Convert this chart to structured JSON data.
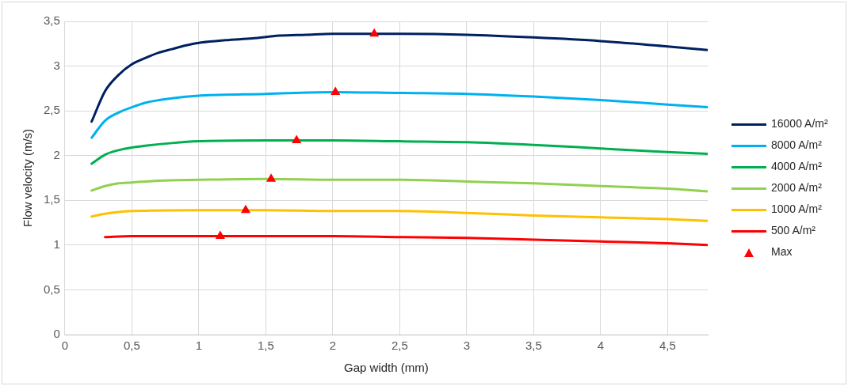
{
  "chart_data": {
    "type": "line",
    "xlabel": "Gap width (mm)",
    "ylabel": "Flow velocity (m/s)",
    "xlim": [
      0,
      4.8
    ],
    "xticks": [
      0,
      {
        "value": 0.5,
        "label": "0,5"
      },
      1,
      {
        "value": 1.5,
        "label": "1,5"
      },
      2,
      {
        "value": 2.5,
        "label": "2,5"
      },
      3,
      {
        "value": 3.5,
        "label": "3,5"
      },
      4,
      {
        "value": 4.5,
        "label": "4,5"
      }
    ],
    "ylim": [
      0,
      3.5
    ],
    "yticks": [
      0,
      {
        "value": 0.5,
        "label": "0,5"
      },
      1,
      {
        "value": 1.5,
        "label": "1,5"
      },
      2,
      {
        "value": 2.5,
        "label": "2,5"
      },
      3,
      {
        "value": 3.5,
        "label": "3,5"
      }
    ],
    "grid": true,
    "legend": "right",
    "line_style": "solid",
    "series": [
      {
        "name": "16000 A/m²",
        "color": "#002060",
        "type": "line",
        "marker": "none",
        "x": [
          0.2,
          0.3,
          0.4,
          0.5,
          0.6,
          0.7,
          0.8,
          0.9,
          1.0,
          1.2,
          1.4,
          1.6,
          1.8,
          2.0,
          2.3,
          2.5,
          3.0,
          3.5,
          4.0,
          4.5,
          4.8
        ],
        "values": [
          2.38,
          2.72,
          2.9,
          3.02,
          3.09,
          3.15,
          3.19,
          3.23,
          3.26,
          3.29,
          3.31,
          3.34,
          3.35,
          3.36,
          3.36,
          3.36,
          3.35,
          3.32,
          3.28,
          3.22,
          3.18
        ]
      },
      {
        "name": "8000 A/m²",
        "color": "#00b0f0",
        "type": "line",
        "marker": "none",
        "x": [
          0.2,
          0.3,
          0.4,
          0.5,
          0.6,
          0.8,
          1.0,
          1.5,
          2.0,
          2.5,
          3.0,
          3.5,
          4.0,
          4.5,
          4.8
        ],
        "values": [
          2.2,
          2.39,
          2.48,
          2.54,
          2.59,
          2.64,
          2.67,
          2.69,
          2.71,
          2.7,
          2.69,
          2.66,
          2.62,
          2.57,
          2.54
        ]
      },
      {
        "name": "4000 A/m²",
        "color": "#00b050",
        "type": "line",
        "marker": "none",
        "x": [
          0.2,
          0.3,
          0.4,
          0.5,
          0.6,
          0.8,
          1.0,
          1.5,
          1.75,
          2.0,
          2.5,
          3.0,
          3.5,
          4.0,
          4.5,
          4.8
        ],
        "values": [
          1.91,
          2.01,
          2.06,
          2.09,
          2.11,
          2.14,
          2.16,
          2.17,
          2.17,
          2.17,
          2.16,
          2.15,
          2.12,
          2.08,
          2.04,
          2.02
        ]
      },
      {
        "name": "2000 A/m²",
        "color": "#92d050",
        "type": "line",
        "marker": "none",
        "x": [
          0.2,
          0.3,
          0.4,
          0.5,
          0.7,
          1.0,
          1.5,
          2.0,
          2.5,
          3.0,
          3.5,
          4.0,
          4.5,
          4.8
        ],
        "values": [
          1.61,
          1.66,
          1.69,
          1.7,
          1.72,
          1.73,
          1.74,
          1.73,
          1.73,
          1.71,
          1.69,
          1.66,
          1.63,
          1.6
        ]
      },
      {
        "name": "1000 A/m²",
        "color": "#ffc000",
        "type": "line",
        "marker": "none",
        "x": [
          0.2,
          0.3,
          0.4,
          0.5,
          1.0,
          1.5,
          2.0,
          2.5,
          3.0,
          3.5,
          4.0,
          4.5,
          4.8
        ],
        "values": [
          1.32,
          1.35,
          1.37,
          1.38,
          1.39,
          1.39,
          1.38,
          1.38,
          1.36,
          1.33,
          1.31,
          1.29,
          1.27
        ]
      },
      {
        "name": "500 A/m²",
        "color": "#ff0000",
        "type": "line",
        "marker": "none",
        "x": [
          0.3,
          0.5,
          1.0,
          1.5,
          2.0,
          2.5,
          3.0,
          3.5,
          4.0,
          4.5,
          4.8
        ],
        "values": [
          1.09,
          1.1,
          1.1,
          1.1,
          1.1,
          1.09,
          1.08,
          1.06,
          1.04,
          1.02,
          1.0
        ]
      },
      {
        "name": "Max",
        "color": "#ff0000",
        "type": "scatter",
        "marker": "triangle",
        "x": [
          2.31,
          2.02,
          1.73,
          1.54,
          1.35,
          1.16
        ],
        "values": [
          3.36,
          2.71,
          2.17,
          1.74,
          1.39,
          1.1
        ]
      }
    ]
  }
}
